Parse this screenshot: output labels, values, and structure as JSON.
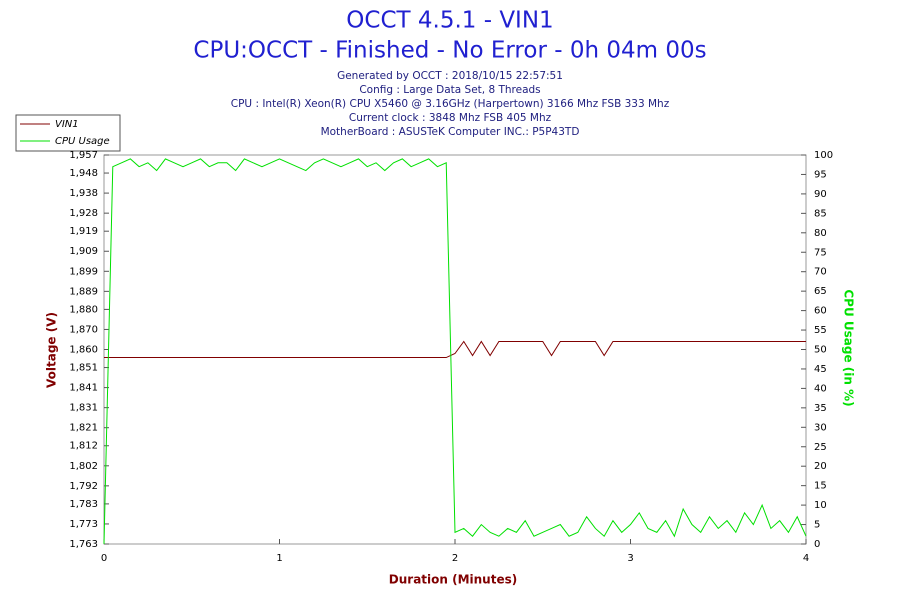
{
  "chart_data": {
    "type": "line",
    "title": "OCCT 4.5.1 - VIN1",
    "subtitle": "CPU:OCCT - Finished - No Error - 0h 04m 00s",
    "info": [
      "Generated by OCCT : 2018/10/15 22:57:51",
      "Config : Large Data Set, 8 Threads",
      "CPU : Intel(R) Xeon(R) CPU X5460 @ 3.16GHz (Harpertown) 3166 Mhz FSB 333 Mhz",
      "Current clock : 3848 Mhz FSB 405 Mhz",
      "MotherBoard : ASUSTeK Computer INC.: P5P43TD"
    ],
    "xlabel": "Duration (Minutes)",
    "ylabel": "Voltage (V)",
    "y2label": "CPU Usage (in %)",
    "legend": "top-left",
    "x": [
      0,
      0.05,
      0.1,
      0.15,
      0.2,
      0.25,
      0.3,
      0.35,
      0.4,
      0.45,
      0.5,
      0.55,
      0.6,
      0.65,
      0.7,
      0.75,
      0.8,
      0.85,
      0.9,
      0.95,
      1,
      1.05,
      1.1,
      1.15,
      1.2,
      1.25,
      1.3,
      1.35,
      1.4,
      1.45,
      1.5,
      1.55,
      1.6,
      1.65,
      1.7,
      1.75,
      1.8,
      1.85,
      1.9,
      1.95,
      2,
      2.05,
      2.1,
      2.15,
      2.2,
      2.25,
      2.3,
      2.35,
      2.4,
      2.45,
      2.5,
      2.55,
      2.6,
      2.65,
      2.7,
      2.75,
      2.8,
      2.85,
      2.9,
      2.95,
      3,
      3.05,
      3.1,
      3.15,
      3.2,
      3.25,
      3.3,
      3.35,
      3.4,
      3.45,
      3.5,
      3.55,
      3.6,
      3.65,
      3.7,
      3.75,
      3.8,
      3.85,
      3.9,
      3.95,
      4
    ],
    "series": [
      {
        "name": "VIN1",
        "color": "#800000",
        "values": [
          1.856,
          1.856,
          1.856,
          1.856,
          1.856,
          1.856,
          1.856,
          1.856,
          1.856,
          1.856,
          1.856,
          1.856,
          1.856,
          1.856,
          1.856,
          1.856,
          1.856,
          1.856,
          1.856,
          1.856,
          1.856,
          1.856,
          1.856,
          1.856,
          1.856,
          1.856,
          1.856,
          1.856,
          1.856,
          1.856,
          1.856,
          1.856,
          1.856,
          1.856,
          1.856,
          1.856,
          1.856,
          1.856,
          1.856,
          1.856,
          1.858,
          1.864,
          1.857,
          1.864,
          1.857,
          1.864,
          1.864,
          1.864,
          1.864,
          1.864,
          1.864,
          1.857,
          1.864,
          1.864,
          1.864,
          1.864,
          1.864,
          1.857,
          1.864,
          1.864,
          1.864,
          1.864,
          1.864,
          1.864,
          1.864,
          1.864,
          1.864,
          1.864,
          1.864,
          1.864,
          1.864,
          1.864,
          1.864,
          1.864,
          1.864,
          1.864,
          1.864,
          1.864,
          1.864,
          1.864,
          1.864
        ]
      },
      {
        "name": "CPU Usage",
        "color": "#00e000",
        "axis": "y2",
        "values": [
          0,
          97,
          98,
          99,
          97,
          98,
          96,
          99,
          98,
          97,
          98,
          99,
          97,
          98,
          98,
          96,
          99,
          98,
          97,
          98,
          99,
          98,
          97,
          96,
          98,
          99,
          98,
          97,
          98,
          99,
          97,
          98,
          96,
          98,
          99,
          97,
          98,
          99,
          97,
          98,
          3,
          4,
          2,
          5,
          3,
          2,
          4,
          3,
          6,
          2,
          3,
          4,
          5,
          2,
          3,
          7,
          4,
          2,
          6,
          3,
          5,
          8,
          4,
          3,
          6,
          2,
          9,
          5,
          3,
          7,
          4,
          6,
          3,
          8,
          5,
          10,
          4,
          6,
          3,
          7,
          2
        ]
      }
    ],
    "xlim": [
      0,
      4
    ],
    "xticks": [
      0,
      1,
      2,
      3,
      4
    ],
    "ylim": [
      1.763,
      1.957
    ],
    "yticks": [
      {
        "value": 1.763,
        "label": "1,763"
      },
      {
        "value": 1.773,
        "label": "1,773"
      },
      {
        "value": 1.783,
        "label": "1,783"
      },
      {
        "value": 1.792,
        "label": "1,792"
      },
      {
        "value": 1.802,
        "label": "1,802"
      },
      {
        "value": 1.812,
        "label": "1,812"
      },
      {
        "value": 1.821,
        "label": "1,821"
      },
      {
        "value": 1.831,
        "label": "1,831"
      },
      {
        "value": 1.841,
        "label": "1,841"
      },
      {
        "value": 1.851,
        "label": "1,851"
      },
      {
        "value": 1.86,
        "label": "1,860"
      },
      {
        "value": 1.87,
        "label": "1,870"
      },
      {
        "value": 1.88,
        "label": "1,880"
      },
      {
        "value": 1.889,
        "label": "1,889"
      },
      {
        "value": 1.899,
        "label": "1,899"
      },
      {
        "value": 1.909,
        "label": "1,909"
      },
      {
        "value": 1.919,
        "label": "1,919"
      },
      {
        "value": 1.928,
        "label": "1,928"
      },
      {
        "value": 1.938,
        "label": "1,938"
      },
      {
        "value": 1.948,
        "label": "1,948"
      },
      {
        "value": 1.957,
        "label": "1,957"
      }
    ],
    "y2lim": [
      0,
      100
    ],
    "y2ticks": [
      0,
      5,
      10,
      15,
      20,
      25,
      30,
      35,
      40,
      45,
      50,
      55,
      60,
      65,
      70,
      75,
      80,
      85,
      90,
      95,
      100
    ],
    "grid": false
  }
}
